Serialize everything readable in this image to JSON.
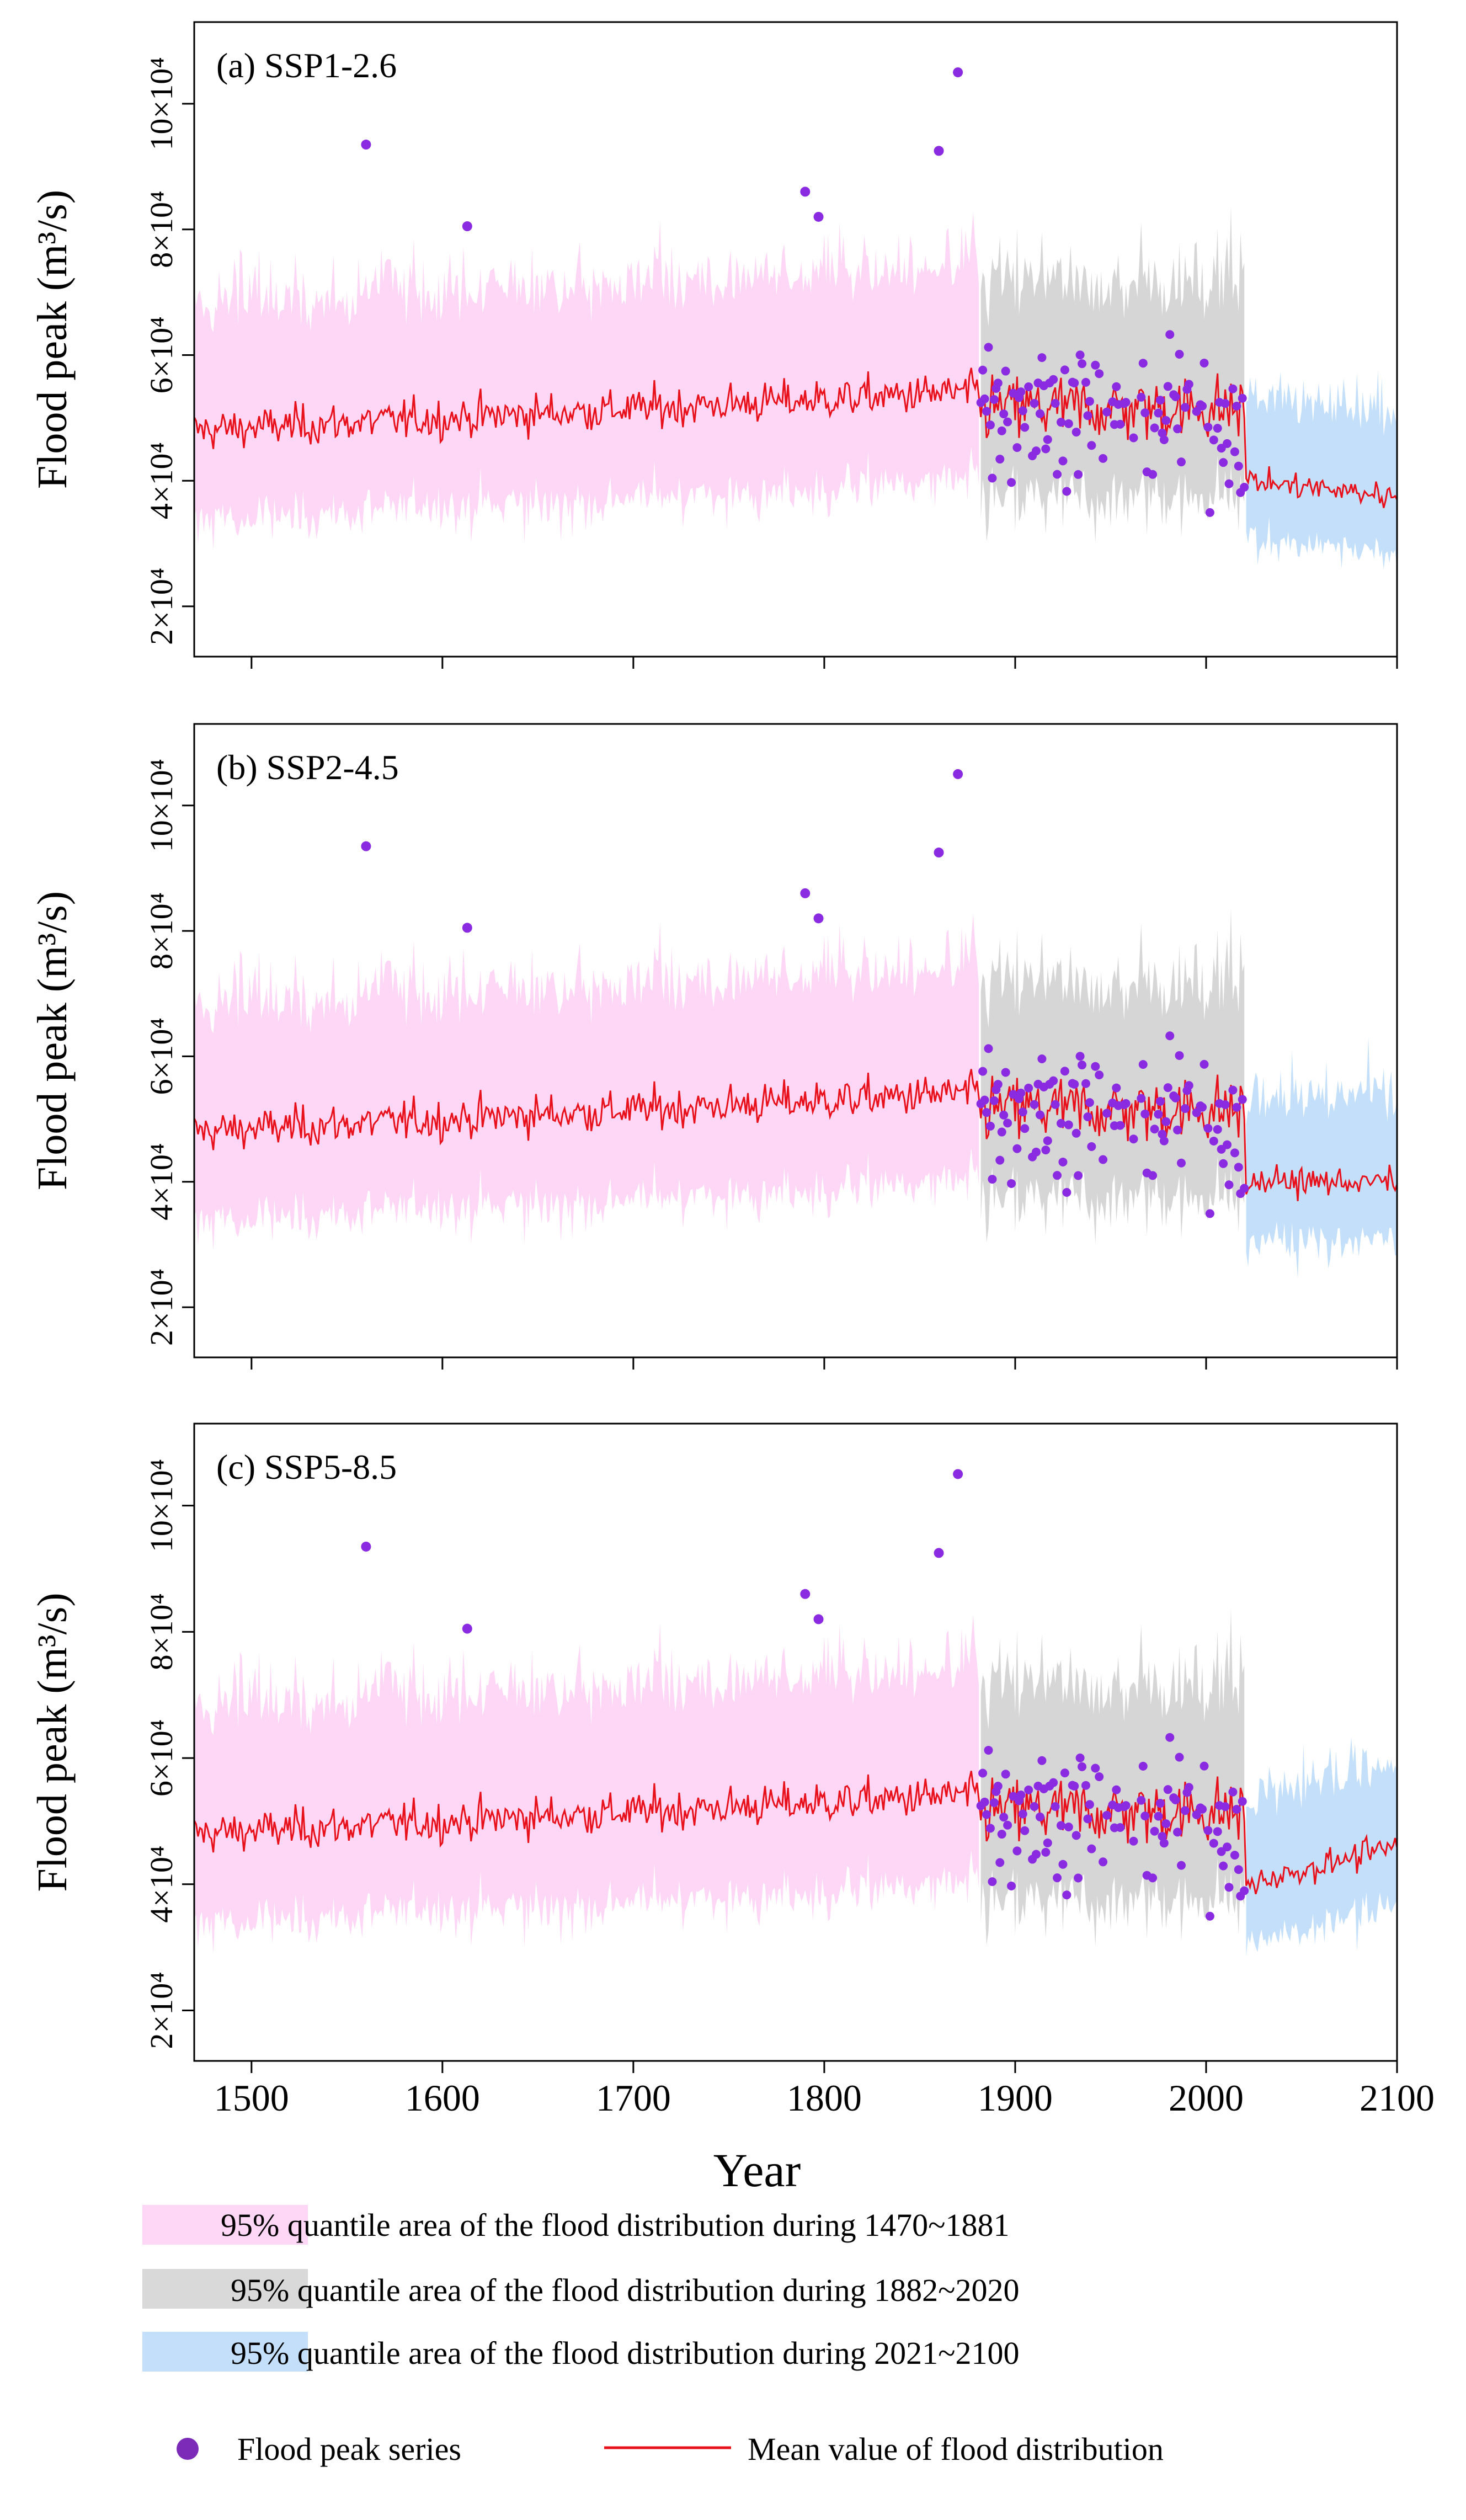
{
  "chart_data": {
    "type": "line",
    "xlabel": "Year",
    "ylabel": "Flood peak (m³/s)",
    "xlim": [
      1470,
      2100
    ],
    "ylim": [
      12000,
      113000
    ],
    "x_ticks": [
      1500,
      1600,
      1700,
      1800,
      1900,
      2000,
      2100
    ],
    "x_tick_labels": [
      "1500",
      "1600",
      "1700",
      "1800",
      "1900",
      "2000",
      "2100"
    ],
    "y_ticks": [
      20000,
      40000,
      60000,
      80000,
      100000
    ],
    "y_tick_labels": [
      "2×10⁴",
      "4×10⁴",
      "6×10⁴",
      "8×10⁴",
      "10×10⁴"
    ],
    "periods": [
      {
        "name": "1470~1881",
        "start": 1470,
        "end": 1881,
        "color": "#fdd7f5"
      },
      {
        "name": "1882~2020",
        "start": 1882,
        "end": 2020,
        "color": "#d6d6d6"
      },
      {
        "name": "2021~2100",
        "start": 2021,
        "end": 2100,
        "color": "#c3dffa"
      }
    ],
    "line_color": "#e8101a",
    "point_color": "#8a2be2",
    "panels": [
      {
        "title": "(a) SSP1-2.6",
        "future_mean_start": 40000,
        "future_mean_end": 37500
      },
      {
        "title": "(b) SSP2-4.5",
        "future_mean_start": 40000,
        "future_mean_end": 40000
      },
      {
        "title": "(c) SSP5-8.5",
        "future_mean_start": 40000,
        "future_mean_end": 46000
      }
    ],
    "historical_flood_peaks": [
      {
        "year": 1560,
        "value": 93500
      },
      {
        "year": 1613,
        "value": 80500
      },
      {
        "year": 1790,
        "value": 86000
      },
      {
        "year": 1797,
        "value": 82000
      },
      {
        "year": 1860,
        "value": 92500
      },
      {
        "year": 1870,
        "value": 105000
      }
    ],
    "mean_1470_1881_approx": 51000,
    "mean_1882_2020_approx": 51500,
    "series_names": {
      "points": "Flood peak series",
      "line": "Mean value of flood distribution"
    }
  },
  "legend": {
    "band1": "95% quantile area of the flood distribution during 1470~1881",
    "band2": "95% quantile area of the flood distribution during 1882~2020",
    "band3": "95% quantile area of the flood distribution during 2021~2100",
    "points": "Flood peak series",
    "line": "Mean value of flood distribution"
  }
}
